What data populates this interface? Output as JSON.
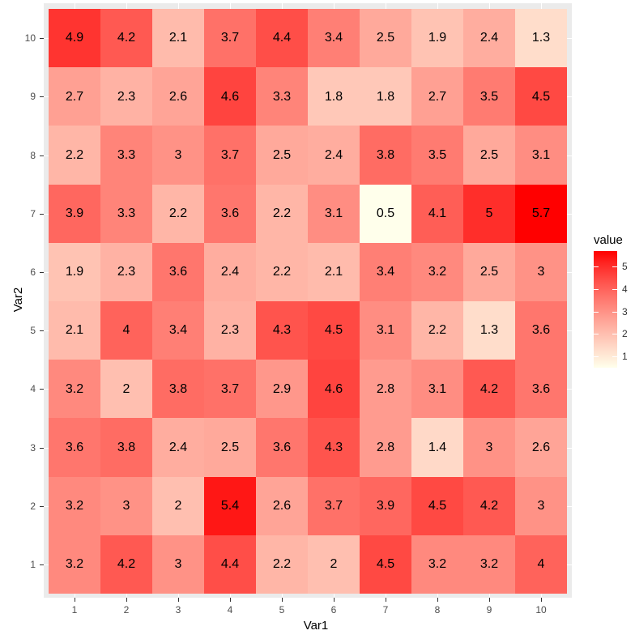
{
  "chart_data": {
    "type": "heatmap",
    "title": "",
    "xlabel": "Var1",
    "ylabel": "Var2",
    "x_categories": [
      "1",
      "2",
      "3",
      "4",
      "5",
      "6",
      "7",
      "8",
      "9",
      "10"
    ],
    "y_categories": [
      "1",
      "2",
      "3",
      "4",
      "5",
      "6",
      "7",
      "8",
      "9",
      "10"
    ],
    "rows_top_to_bottom": [
      {
        "y": "10",
        "values": [
          4.9,
          4.2,
          2.1,
          3.7,
          4.4,
          3.4,
          2.5,
          1.9,
          2.4,
          1.3
        ]
      },
      {
        "y": "9",
        "values": [
          2.7,
          2.3,
          2.6,
          4.6,
          3.3,
          1.8,
          1.8,
          2.7,
          3.5,
          4.5
        ]
      },
      {
        "y": "8",
        "values": [
          2.2,
          3.3,
          3,
          3.7,
          2.5,
          2.4,
          3.8,
          3.5,
          2.5,
          3.1
        ]
      },
      {
        "y": "7",
        "values": [
          3.9,
          3.3,
          2.2,
          3.6,
          2.2,
          3.1,
          0.5,
          4.1,
          5,
          5.7
        ]
      },
      {
        "y": "6",
        "values": [
          1.9,
          2.3,
          3.6,
          2.4,
          2.2,
          2.1,
          3.4,
          3.2,
          2.5,
          3
        ]
      },
      {
        "y": "5",
        "values": [
          2.1,
          4,
          3.4,
          2.3,
          4.3,
          4.5,
          3.1,
          2.2,
          1.3,
          3.6
        ]
      },
      {
        "y": "4",
        "values": [
          3.2,
          2,
          3.8,
          3.7,
          2.9,
          4.6,
          2.8,
          3.1,
          4.2,
          3.6
        ]
      },
      {
        "y": "3",
        "values": [
          3.6,
          3.8,
          2.4,
          2.5,
          3.6,
          4.3,
          2.8,
          1.4,
          3,
          2.6
        ]
      },
      {
        "y": "2",
        "values": [
          3.2,
          3,
          2,
          5.4,
          2.6,
          3.7,
          3.9,
          4.5,
          4.2,
          3
        ]
      },
      {
        "y": "1",
        "values": [
          3.2,
          4.2,
          3,
          4.4,
          2.2,
          2,
          4.5,
          3.2,
          3.2,
          4
        ]
      }
    ],
    "legend": {
      "title": "value",
      "ticks": [
        "1",
        "2",
        "3",
        "4",
        "5"
      ],
      "range": [
        0.5,
        5.7
      ],
      "low_color": "#FFFFFF",
      "high_color": "#FF0000"
    },
    "grid": true
  }
}
